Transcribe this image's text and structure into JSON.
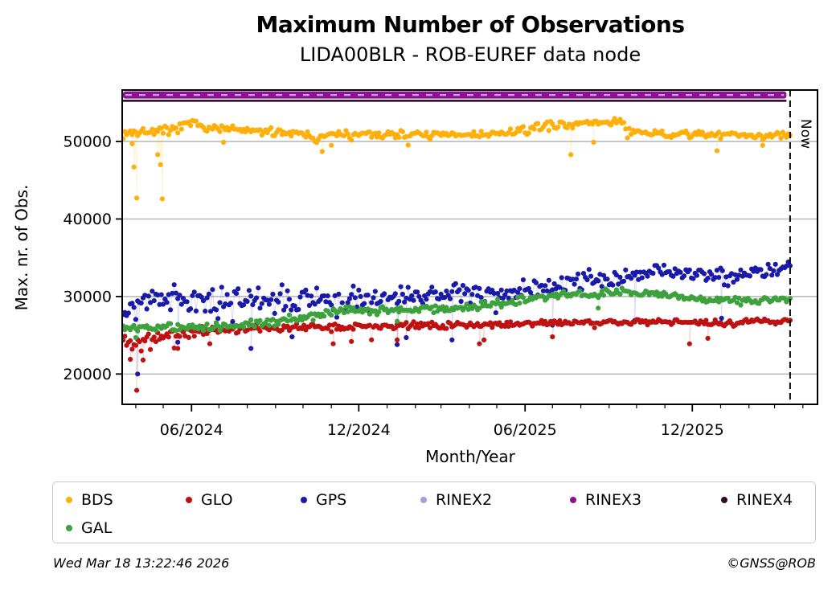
{
  "header": {
    "title": "Maximum Number of Observations",
    "subtitle": "LIDA00BLR - ROB-EUREF data node"
  },
  "footer": {
    "timestamp": "Wed Mar 18 13:22:46 2026",
    "credit": "©GNSS@ROB"
  },
  "legend": {
    "items": [
      {
        "label": "BDS",
        "color": "#FFAF0A"
      },
      {
        "label": "GLO",
        "color": "#BE1212"
      },
      {
        "label": "GPS",
        "color": "#1A1AA8"
      },
      {
        "label": "RINEX2",
        "color": "#A2A0DA"
      },
      {
        "label": "RINEX3",
        "color": "#8E128E"
      },
      {
        "label": "RINEX4",
        "color": "#2E0A26"
      },
      {
        "label": "GAL",
        "color": "#3DA23D"
      }
    ]
  },
  "chart_data": {
    "type": "scatter",
    "title": "Maximum Number of Observations",
    "subtitle": "LIDA00BLR - ROB-EUREF data node",
    "xlabel": "Month/Year",
    "ylabel": "Max. nr. of Obs.",
    "now_label": "Now",
    "x_axis": {
      "start_date": "03/2024",
      "end_date": "04/2026",
      "days_span": 760,
      "now_day": 730,
      "major_ticks": [
        {
          "label": "06/2024",
          "day": 75
        },
        {
          "label": "12/2024",
          "day": 258
        },
        {
          "label": "06/2025",
          "day": 440
        },
        {
          "label": "12/2025",
          "day": 623
        }
      ],
      "minor_tick_days": [
        14,
        44,
        105,
        136,
        167,
        197,
        228,
        289,
        320,
        348,
        379,
        409,
        470,
        501,
        532,
        562,
        593,
        654,
        685,
        713,
        744
      ]
    },
    "y_axis": {
      "ticks": [
        20000,
        30000,
        40000,
        50000
      ],
      "ylim": [
        16100,
        56700
      ],
      "grid": true
    },
    "series": [
      {
        "name": "BDS",
        "color": "#FFAF0A",
        "kind": "dots",
        "trend": [
          [
            0,
            51100,
            700
          ],
          [
            55,
            51400,
            650
          ],
          [
            75,
            52350,
            500
          ],
          [
            95,
            51800,
            550
          ],
          [
            140,
            51300,
            500
          ],
          [
            200,
            51150,
            550
          ],
          [
            212,
            50150,
            450
          ],
          [
            225,
            50900,
            500
          ],
          [
            300,
            50900,
            550
          ],
          [
            360,
            50800,
            550
          ],
          [
            420,
            51000,
            600
          ],
          [
            445,
            51600,
            600
          ],
          [
            470,
            52100,
            550
          ],
          [
            500,
            52300,
            550
          ],
          [
            545,
            52600,
            500
          ],
          [
            556,
            51100,
            500
          ],
          [
            600,
            50900,
            500
          ],
          [
            660,
            50900,
            550
          ],
          [
            700,
            50800,
            550
          ],
          [
            730,
            50700,
            500
          ]
        ],
        "tail": {
          "prob": 0.012,
          "mag": 1500
        },
        "outliers": [
          [
            10,
            49700
          ],
          [
            12,
            46700
          ],
          [
            15,
            42700
          ],
          [
            38,
            48300
          ],
          [
            41,
            47000
          ],
          [
            43,
            42600
          ],
          [
            110,
            49900
          ],
          [
            218,
            48700
          ],
          [
            228,
            49500
          ],
          [
            490,
            48300
          ],
          [
            515,
            49900
          ],
          [
            650,
            48800
          ],
          [
            700,
            49500
          ]
        ]
      },
      {
        "name": "GLO",
        "color": "#BE1212",
        "kind": "dots",
        "trend": [
          [
            0,
            24300,
            1200
          ],
          [
            20,
            24000,
            1300
          ],
          [
            50,
            25000,
            800
          ],
          [
            90,
            25600,
            700
          ],
          [
            140,
            25900,
            500
          ],
          [
            200,
            26100,
            450
          ],
          [
            260,
            26200,
            450
          ],
          [
            330,
            26300,
            450
          ],
          [
            430,
            26500,
            400
          ],
          [
            520,
            26700,
            350
          ],
          [
            600,
            26700,
            350
          ],
          [
            660,
            26500,
            500
          ],
          [
            700,
            26800,
            350
          ],
          [
            730,
            26800,
            300
          ]
        ],
        "tail": {
          "prob": 0.015,
          "mag": 1800
        },
        "outliers": [
          [
            8,
            21900
          ],
          [
            15,
            17900
          ],
          [
            22,
            21800
          ],
          [
            60,
            23300
          ],
          [
            95,
            23900
          ],
          [
            230,
            23900
          ],
          [
            250,
            24200
          ],
          [
            300,
            24400
          ],
          [
            390,
            23900
          ],
          [
            395,
            24400
          ],
          [
            470,
            24800
          ],
          [
            620,
            23900
          ],
          [
            640,
            24600
          ]
        ]
      },
      {
        "name": "GPS",
        "color": "#1A1AA8",
        "kind": "dots",
        "trend": [
          [
            0,
            28300,
            2300
          ],
          [
            30,
            29300,
            1900
          ],
          [
            90,
            29600,
            1800
          ],
          [
            160,
            29300,
            1900
          ],
          [
            230,
            29800,
            1900
          ],
          [
            300,
            29900,
            1700
          ],
          [
            370,
            30300,
            1500
          ],
          [
            440,
            30700,
            1500
          ],
          [
            480,
            31600,
            1400
          ],
          [
            540,
            32600,
            1100
          ],
          [
            590,
            33300,
            900
          ],
          [
            640,
            32200,
            1500
          ],
          [
            690,
            33200,
            1000
          ],
          [
            730,
            34000,
            800
          ]
        ],
        "tail": {
          "prob": 0.02,
          "mag": 3000
        },
        "outliers": [
          [
            16,
            20000
          ],
          [
            60,
            24100
          ],
          [
            140,
            23300
          ],
          [
            185,
            24800
          ],
          [
            300,
            23800
          ],
          [
            310,
            24700
          ],
          [
            360,
            24400
          ],
          [
            470,
            26300
          ],
          [
            560,
            26900
          ],
          [
            655,
            27200
          ]
        ]
      },
      {
        "name": "RINEX2",
        "color": "#B9A8E2",
        "kind": "band-dash",
        "value": 56000,
        "end_day": 726
      },
      {
        "name": "RINEX3",
        "color": "#8E128E",
        "kind": "band",
        "value": 56000,
        "end_day": 726
      },
      {
        "name": "RINEX4",
        "color": "#220522",
        "kind": "line",
        "value": 55250,
        "end_day": 726
      },
      {
        "name": "GAL",
        "color": "#3DA23D",
        "kind": "dots",
        "trend": [
          [
            0,
            25900,
            600
          ],
          [
            60,
            26100,
            550
          ],
          [
            120,
            26200,
            550
          ],
          [
            170,
            26800,
            600
          ],
          [
            210,
            27600,
            600
          ],
          [
            250,
            28200,
            550
          ],
          [
            320,
            28300,
            550
          ],
          [
            380,
            28600,
            550
          ],
          [
            420,
            29300,
            600
          ],
          [
            460,
            30000,
            550
          ],
          [
            500,
            30300,
            550
          ],
          [
            560,
            30600,
            550
          ],
          [
            600,
            30300,
            550
          ],
          [
            630,
            29600,
            500
          ],
          [
            680,
            29400,
            500
          ],
          [
            730,
            29600,
            450
          ]
        ],
        "tail": {
          "prob": 0.01,
          "mag": 900
        },
        "outliers": [
          [
            14,
            24700
          ],
          [
            300,
            26800
          ],
          [
            520,
            28500
          ]
        ]
      }
    ],
    "legend_position": "bottom",
    "sample_step_days": 2,
    "dot_radius": 3.1
  }
}
